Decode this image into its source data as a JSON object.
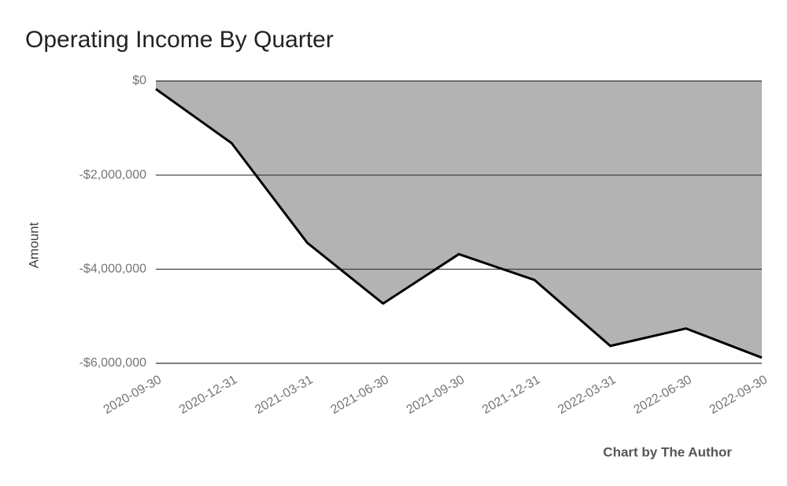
{
  "chart_data": {
    "type": "area",
    "title": "Operating Income By Quarter",
    "y_label": "Amount",
    "footer": "Chart by The Author",
    "categories": [
      "2020-09-30",
      "2020-12-31",
      "2021-03-31",
      "2021-06-30",
      "2021-09-30",
      "2021-12-31",
      "2022-03-31",
      "2022-06-30",
      "2022-09-30"
    ],
    "values": [
      -170000,
      -1320000,
      -3440000,
      -4730000,
      -3680000,
      -4230000,
      -5630000,
      -5260000,
      -5880000
    ],
    "fill_color": "#b3b3b3",
    "line_color": "#000000",
    "ylim": [
      -6000000,
      0
    ],
    "yticks": [
      {
        "value": -6000000,
        "label": "-$6,000,000"
      },
      {
        "value": -4000000,
        "label": "-$4,000,000"
      },
      {
        "value": -2000000,
        "label": "-$2,000,000"
      },
      {
        "value": 0,
        "label": "$0"
      }
    ],
    "grid": true
  }
}
